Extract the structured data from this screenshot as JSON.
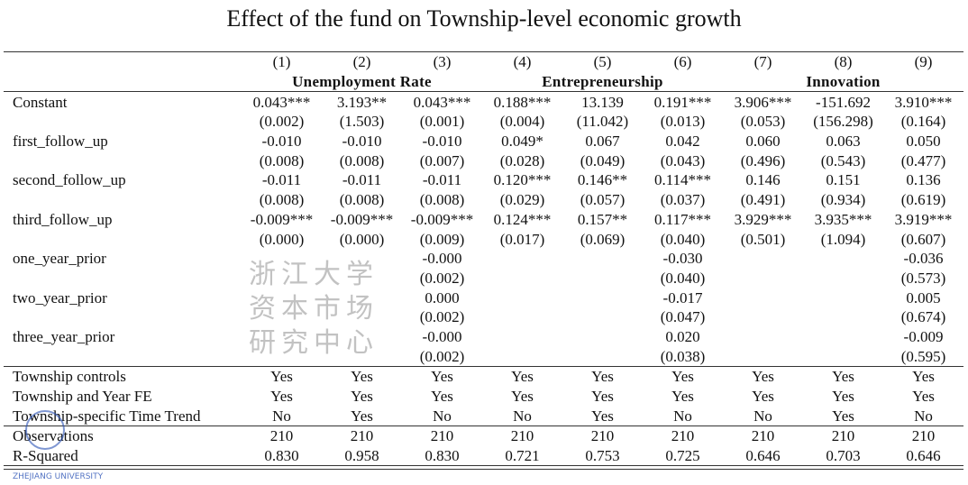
{
  "title": "Effect of the fund on Township-level economic growth",
  "columns": [
    "(1)",
    "(2)",
    "(3)",
    "(4)",
    "(5)",
    "(6)",
    "(7)",
    "(8)",
    "(9)"
  ],
  "groups": [
    "Unemployment Rate",
    "Entrepreneurship",
    "Innovation"
  ],
  "rows": [
    {
      "label": "Constant",
      "coef": [
        "0.043***",
        "3.193**",
        "0.043***",
        "0.188***",
        "13.139",
        "0.191***",
        "3.906***",
        "-151.692",
        "3.910***"
      ],
      "se": [
        "(0.002)",
        "(1.503)",
        "(0.001)",
        "(0.004)",
        "(11.042)",
        "(0.013)",
        "(0.053)",
        "(156.298)",
        "(0.164)"
      ]
    },
    {
      "label": "first_follow_up",
      "coef": [
        "-0.010",
        "-0.010",
        "-0.010",
        "0.049*",
        "0.067",
        "0.042",
        "0.060",
        "0.063",
        "0.050"
      ],
      "se": [
        "(0.008)",
        "(0.008)",
        "(0.007)",
        "(0.028)",
        "(0.049)",
        "(0.043)",
        "(0.496)",
        "(0.543)",
        "(0.477)"
      ]
    },
    {
      "label": "second_follow_up",
      "coef": [
        "-0.011",
        "-0.011",
        "-0.011",
        "0.120***",
        "0.146**",
        "0.114***",
        "0.146",
        "0.151",
        "0.136"
      ],
      "se": [
        "(0.008)",
        "(0.008)",
        "(0.008)",
        "(0.029)",
        "(0.057)",
        "(0.037)",
        "(0.491)",
        "(0.934)",
        "(0.619)"
      ]
    },
    {
      "label": "third_follow_up",
      "coef": [
        "-0.009***",
        "-0.009***",
        "-0.009***",
        "0.124***",
        "0.157**",
        "0.117***",
        "3.929***",
        "3.935***",
        "3.919***"
      ],
      "se": [
        "(0.000)",
        "(0.000)",
        "(0.009)",
        "(0.017)",
        "(0.069)",
        "(0.040)",
        "(0.501)",
        "(1.094)",
        "(0.607)"
      ]
    },
    {
      "label": "one_year_prior",
      "coef": [
        "",
        "",
        "-0.000",
        "",
        "",
        "-0.030",
        "",
        "",
        "-0.036"
      ],
      "se": [
        "",
        "",
        "(0.002)",
        "",
        "",
        "(0.040)",
        "",
        "",
        "(0.573)"
      ]
    },
    {
      "label": "two_year_prior",
      "coef": [
        "",
        "",
        "0.000",
        "",
        "",
        "-0.017",
        "",
        "",
        "0.005"
      ],
      "se": [
        "",
        "",
        "(0.002)",
        "",
        "",
        "(0.047)",
        "",
        "",
        "(0.674)"
      ]
    },
    {
      "label": "three_year_prior",
      "coef": [
        "",
        "",
        "-0.000",
        "",
        "",
        "0.020",
        "",
        "",
        "-0.009"
      ],
      "se": [
        "",
        "",
        "(0.002)",
        "",
        "",
        "(0.038)",
        "",
        "",
        "(0.595)"
      ]
    }
  ],
  "controls": [
    {
      "label": "Township controls",
      "values": [
        "Yes",
        "Yes",
        "Yes",
        "Yes",
        "Yes",
        "Yes",
        "Yes",
        "Yes",
        "Yes"
      ]
    },
    {
      "label": "Township and Year FE",
      "values": [
        "Yes",
        "Yes",
        "Yes",
        "Yes",
        "Yes",
        "Yes",
        "Yes",
        "Yes",
        "Yes"
      ]
    },
    {
      "label": "Township-specific Time Trend",
      "values": [
        "No",
        "Yes",
        "No",
        "No",
        "Yes",
        "No",
        "No",
        "Yes",
        "No"
      ]
    }
  ],
  "stats": [
    {
      "label": "Observations",
      "values": [
        "210",
        "210",
        "210",
        "210",
        "210",
        "210",
        "210",
        "210",
        "210"
      ]
    },
    {
      "label": "R-Squared",
      "values": [
        "0.830",
        "0.958",
        "0.830",
        "0.721",
        "0.753",
        "0.725",
        "0.646",
        "0.703",
        "0.646"
      ]
    }
  ],
  "watermark": {
    "text": "浙江大学资本市场研究中心",
    "logo_color": "#2850b4"
  }
}
